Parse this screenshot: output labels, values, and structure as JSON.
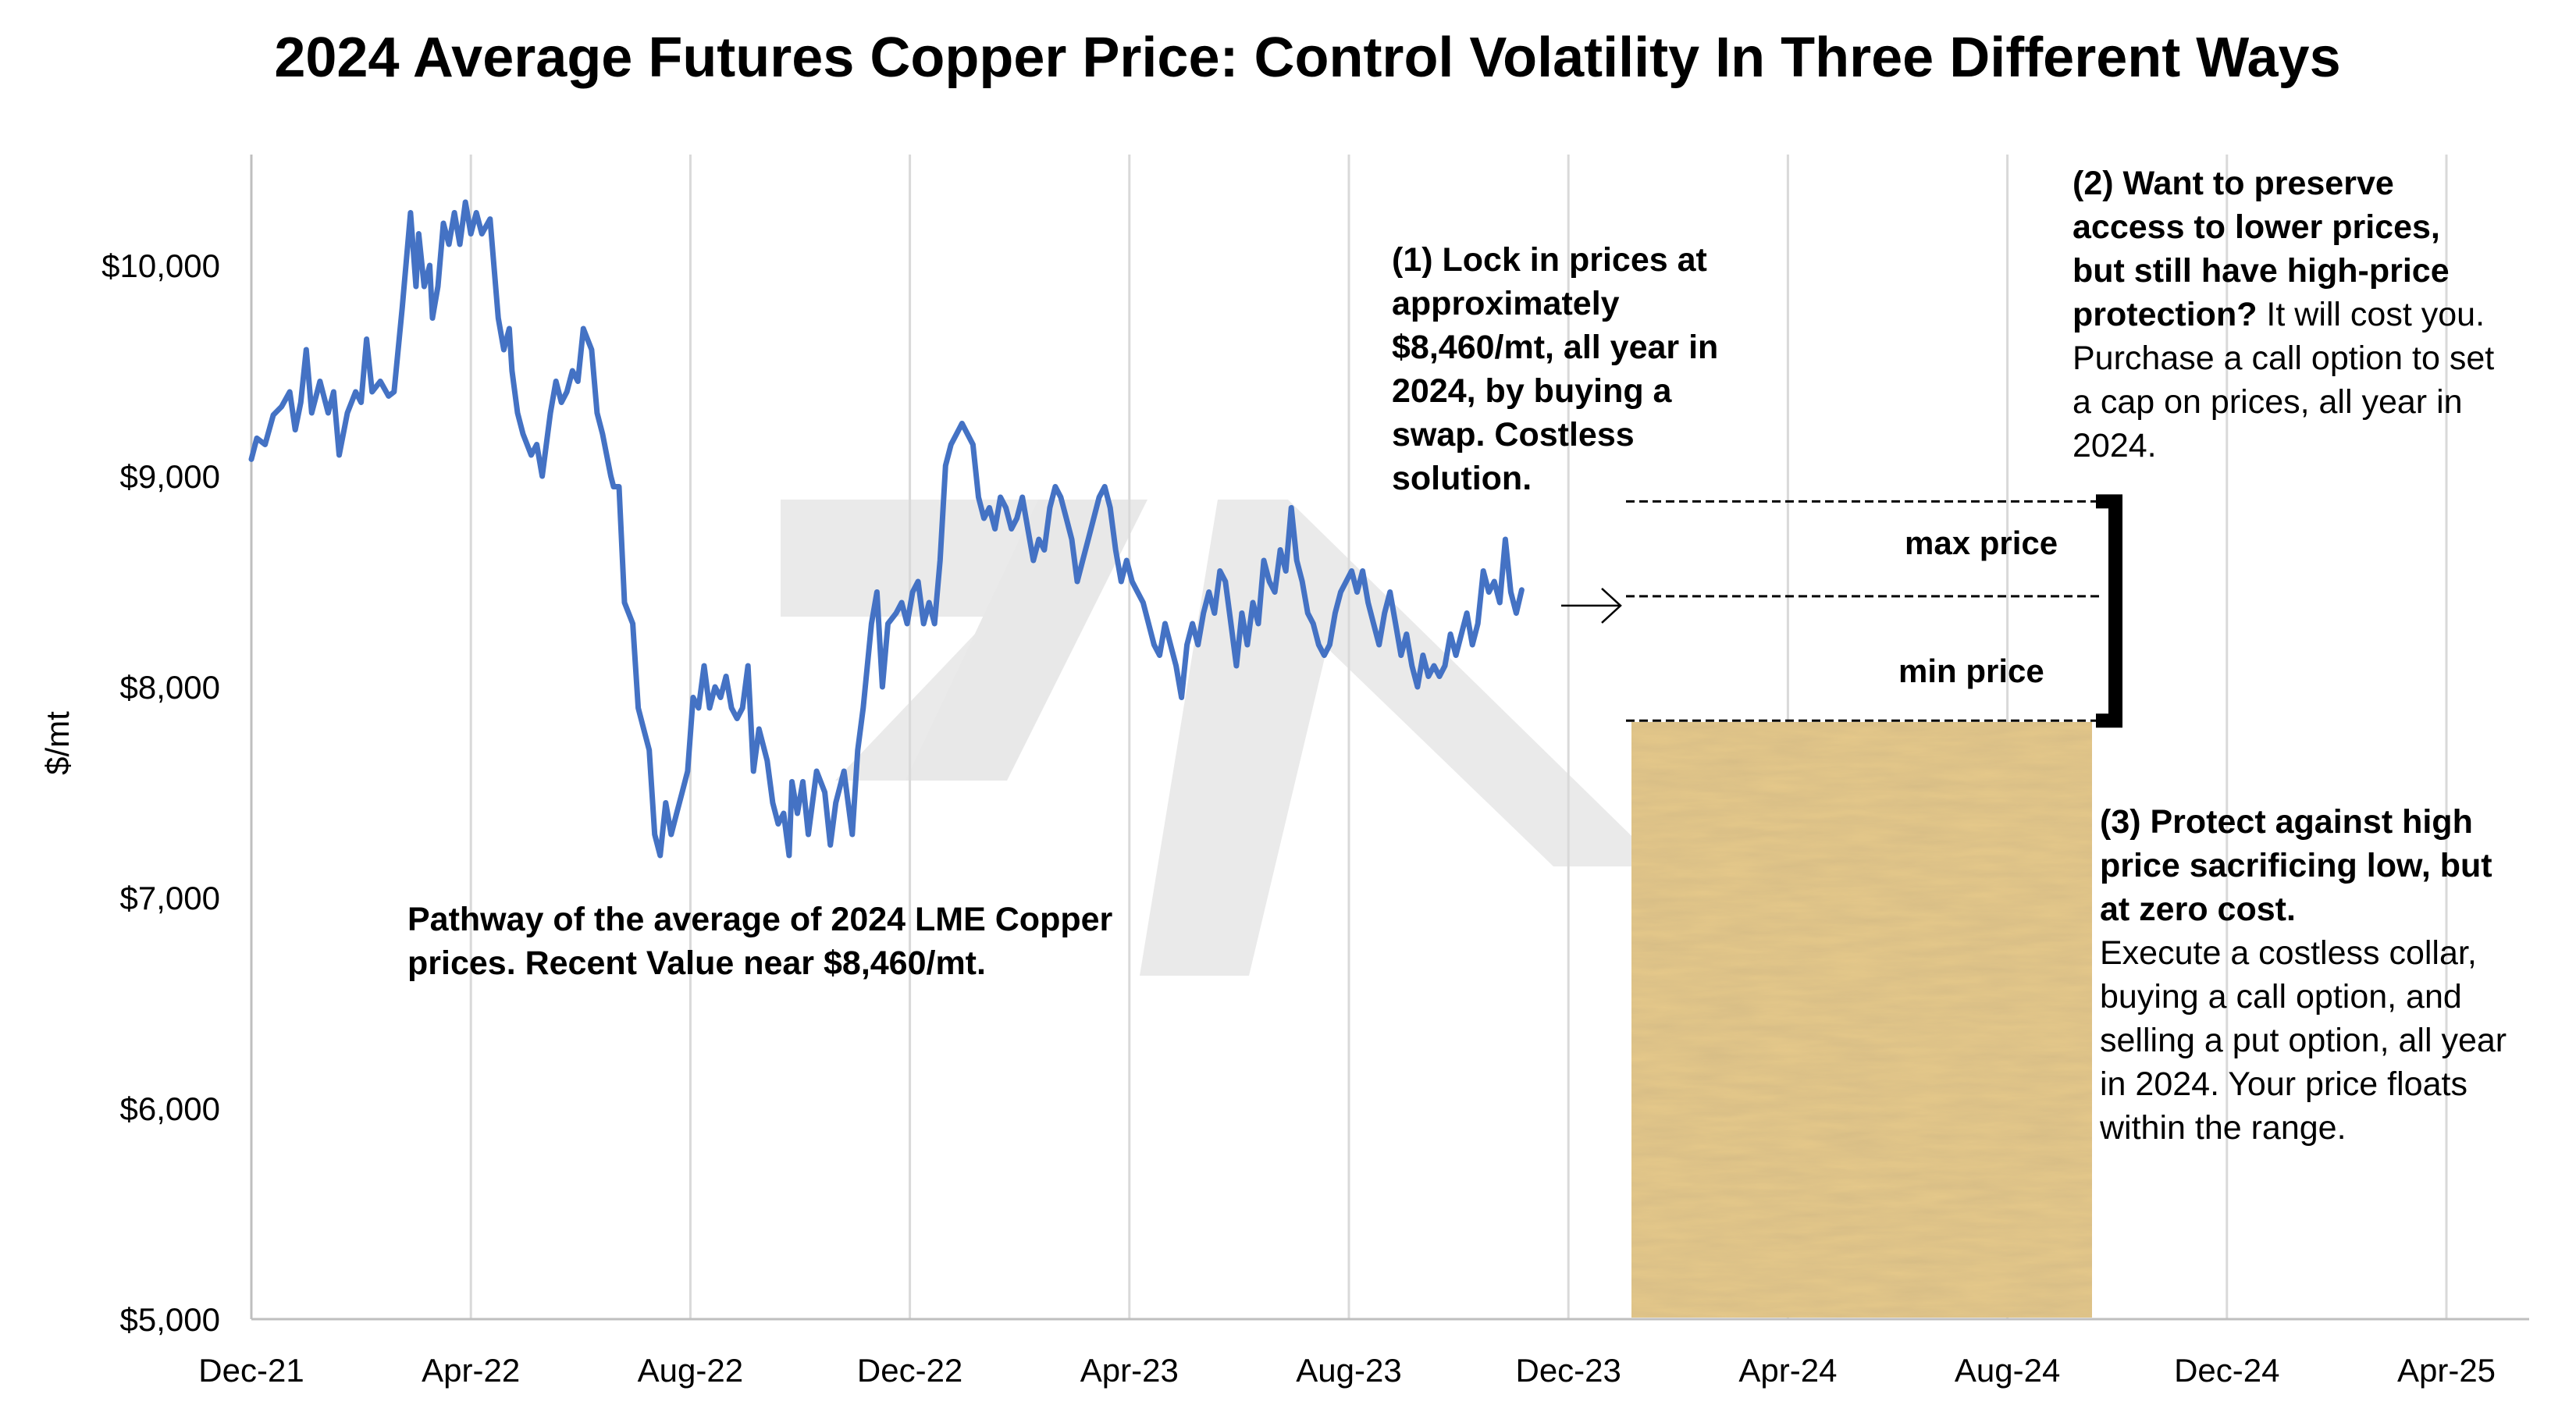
{
  "chart_data": {
    "type": "line",
    "title": "2024 Average Futures Copper Price: Control Volatility In Three Different Ways",
    "ylabel": "$/mt",
    "xlabel": "",
    "ylim": [
      5000,
      10500
    ],
    "y_ticks": [
      "$5,000",
      "$6,000",
      "$7,000",
      "$8,000",
      "$9,000",
      "$10,000"
    ],
    "y_tick_values": [
      5000,
      6000,
      7000,
      8000,
      9000,
      10000
    ],
    "x_ticks": [
      "Dec-21",
      "Apr-22",
      "Aug-22",
      "Dec-22",
      "Apr-23",
      "Aug-23",
      "Dec-23",
      "Apr-24",
      "Aug-24",
      "Dec-24",
      "Apr-25"
    ],
    "x_tick_months": [
      0,
      4,
      8,
      12,
      16,
      20,
      24,
      28,
      32,
      36,
      40
    ],
    "xlim_months": [
      0,
      41.5
    ],
    "grid": "vertical",
    "series": [
      {
        "name": "",
        "color": "#4472C4",
        "points_month_value": [
          [
            0.0,
            9080
          ],
          [
            0.1,
            9180
          ],
          [
            0.25,
            9150
          ],
          [
            0.4,
            9290
          ],
          [
            0.55,
            9330
          ],
          [
            0.7,
            9400
          ],
          [
            0.8,
            9220
          ],
          [
            0.9,
            9350
          ],
          [
            1.0,
            9600
          ],
          [
            1.1,
            9300
          ],
          [
            1.25,
            9450
          ],
          [
            1.4,
            9300
          ],
          [
            1.5,
            9400
          ],
          [
            1.6,
            9100
          ],
          [
            1.75,
            9300
          ],
          [
            1.9,
            9400
          ],
          [
            2.0,
            9350
          ],
          [
            2.1,
            9650
          ],
          [
            2.2,
            9400
          ],
          [
            2.35,
            9450
          ],
          [
            2.5,
            9380
          ],
          [
            2.6,
            9400
          ],
          [
            2.75,
            9800
          ],
          [
            2.9,
            10250
          ],
          [
            3.0,
            9900
          ],
          [
            3.05,
            10150
          ],
          [
            3.15,
            9900
          ],
          [
            3.25,
            10000
          ],
          [
            3.3,
            9750
          ],
          [
            3.4,
            9900
          ],
          [
            3.5,
            10200
          ],
          [
            3.6,
            10100
          ],
          [
            3.7,
            10250
          ],
          [
            3.8,
            10100
          ],
          [
            3.9,
            10300
          ],
          [
            4.0,
            10150
          ],
          [
            4.1,
            10250
          ],
          [
            4.2,
            10150
          ],
          [
            4.35,
            10220
          ],
          [
            4.5,
            9750
          ],
          [
            4.6,
            9600
          ],
          [
            4.7,
            9700
          ],
          [
            4.75,
            9500
          ],
          [
            4.85,
            9300
          ],
          [
            4.95,
            9200
          ],
          [
            5.1,
            9100
          ],
          [
            5.2,
            9150
          ],
          [
            5.3,
            9000
          ],
          [
            5.45,
            9300
          ],
          [
            5.55,
            9450
          ],
          [
            5.65,
            9350
          ],
          [
            5.75,
            9400
          ],
          [
            5.85,
            9500
          ],
          [
            5.95,
            9450
          ],
          [
            6.05,
            9700
          ],
          [
            6.2,
            9600
          ],
          [
            6.3,
            9300
          ],
          [
            6.4,
            9200
          ],
          [
            6.55,
            9000
          ],
          [
            6.6,
            8950
          ],
          [
            6.7,
            8950
          ],
          [
            6.8,
            8400
          ],
          [
            6.95,
            8300
          ],
          [
            7.05,
            7900
          ],
          [
            7.15,
            7800
          ],
          [
            7.25,
            7700
          ],
          [
            7.35,
            7300
          ],
          [
            7.45,
            7200
          ],
          [
            7.55,
            7450
          ],
          [
            7.65,
            7300
          ],
          [
            7.75,
            7400
          ],
          [
            7.85,
            7500
          ],
          [
            7.95,
            7600
          ],
          [
            8.05,
            7950
          ],
          [
            8.15,
            7900
          ],
          [
            8.25,
            8100
          ],
          [
            8.35,
            7900
          ],
          [
            8.45,
            8000
          ],
          [
            8.55,
            7950
          ],
          [
            8.65,
            8050
          ],
          [
            8.75,
            7900
          ],
          [
            8.85,
            7850
          ],
          [
            8.95,
            7900
          ],
          [
            9.05,
            8100
          ],
          [
            9.15,
            7600
          ],
          [
            9.25,
            7800
          ],
          [
            9.4,
            7650
          ],
          [
            9.5,
            7450
          ],
          [
            9.6,
            7350
          ],
          [
            9.7,
            7400
          ],
          [
            9.8,
            7200
          ],
          [
            9.85,
            7550
          ],
          [
            9.95,
            7400
          ],
          [
            10.05,
            7550
          ],
          [
            10.15,
            7300
          ],
          [
            10.3,
            7600
          ],
          [
            10.45,
            7500
          ],
          [
            10.55,
            7250
          ],
          [
            10.65,
            7450
          ],
          [
            10.8,
            7600
          ],
          [
            10.95,
            7300
          ],
          [
            11.05,
            7700
          ],
          [
            11.15,
            7900
          ],
          [
            11.3,
            8300
          ],
          [
            11.4,
            8450
          ],
          [
            11.5,
            8000
          ],
          [
            11.6,
            8300
          ],
          [
            11.75,
            8350
          ],
          [
            11.85,
            8400
          ],
          [
            11.95,
            8300
          ],
          [
            12.05,
            8450
          ],
          [
            12.15,
            8500
          ],
          [
            12.25,
            8300
          ],
          [
            12.35,
            8400
          ],
          [
            12.45,
            8300
          ],
          [
            12.55,
            8600
          ],
          [
            12.65,
            9050
          ],
          [
            12.75,
            9150
          ],
          [
            12.85,
            9200
          ],
          [
            12.95,
            9250
          ],
          [
            13.05,
            9200
          ],
          [
            13.15,
            9150
          ],
          [
            13.25,
            8900
          ],
          [
            13.35,
            8800
          ],
          [
            13.45,
            8850
          ],
          [
            13.55,
            8750
          ],
          [
            13.65,
            8900
          ],
          [
            13.75,
            8850
          ],
          [
            13.85,
            8750
          ],
          [
            13.95,
            8800
          ],
          [
            14.05,
            8900
          ],
          [
            14.15,
            8750
          ],
          [
            14.25,
            8600
          ],
          [
            14.35,
            8700
          ],
          [
            14.45,
            8650
          ],
          [
            14.55,
            8850
          ],
          [
            14.65,
            8950
          ],
          [
            14.75,
            8900
          ],
          [
            14.85,
            8800
          ],
          [
            14.95,
            8700
          ],
          [
            15.05,
            8500
          ],
          [
            15.15,
            8600
          ],
          [
            15.25,
            8700
          ],
          [
            15.35,
            8800
          ],
          [
            15.45,
            8900
          ],
          [
            15.55,
            8950
          ],
          [
            15.65,
            8850
          ],
          [
            15.75,
            8650
          ],
          [
            15.85,
            8500
          ],
          [
            15.95,
            8600
          ],
          [
            16.05,
            8500
          ],
          [
            16.15,
            8450
          ],
          [
            16.25,
            8400
          ],
          [
            16.35,
            8300
          ],
          [
            16.45,
            8200
          ],
          [
            16.55,
            8150
          ],
          [
            16.65,
            8300
          ],
          [
            16.75,
            8200
          ],
          [
            16.85,
            8100
          ],
          [
            16.95,
            7950
          ],
          [
            17.05,
            8200
          ],
          [
            17.15,
            8300
          ],
          [
            17.25,
            8200
          ],
          [
            17.35,
            8350
          ],
          [
            17.45,
            8450
          ],
          [
            17.55,
            8350
          ],
          [
            17.65,
            8550
          ],
          [
            17.75,
            8500
          ],
          [
            17.85,
            8300
          ],
          [
            17.95,
            8100
          ],
          [
            18.05,
            8350
          ],
          [
            18.15,
            8200
          ],
          [
            18.25,
            8400
          ],
          [
            18.35,
            8300
          ],
          [
            18.45,
            8600
          ],
          [
            18.55,
            8500
          ],
          [
            18.65,
            8450
          ],
          [
            18.75,
            8650
          ],
          [
            18.85,
            8550
          ],
          [
            18.95,
            8850
          ],
          [
            19.05,
            8600
          ],
          [
            19.15,
            8500
          ],
          [
            19.25,
            8350
          ],
          [
            19.35,
            8300
          ],
          [
            19.45,
            8200
          ],
          [
            19.55,
            8150
          ],
          [
            19.65,
            8200
          ],
          [
            19.75,
            8350
          ],
          [
            19.85,
            8450
          ],
          [
            19.95,
            8500
          ],
          [
            20.05,
            8550
          ],
          [
            20.15,
            8450
          ],
          [
            20.25,
            8550
          ],
          [
            20.35,
            8400
          ],
          [
            20.45,
            8300
          ],
          [
            20.55,
            8200
          ],
          [
            20.65,
            8350
          ],
          [
            20.75,
            8450
          ],
          [
            20.85,
            8300
          ],
          [
            20.95,
            8150
          ],
          [
            21.05,
            8250
          ],
          [
            21.15,
            8100
          ],
          [
            21.25,
            8000
          ],
          [
            21.35,
            8150
          ],
          [
            21.45,
            8050
          ],
          [
            21.55,
            8100
          ],
          [
            21.65,
            8050
          ],
          [
            21.75,
            8100
          ],
          [
            21.85,
            8250
          ],
          [
            21.95,
            8150
          ],
          [
            22.05,
            8250
          ],
          [
            22.15,
            8350
          ],
          [
            22.25,
            8200
          ],
          [
            22.35,
            8300
          ],
          [
            22.45,
            8550
          ],
          [
            22.55,
            8450
          ],
          [
            22.65,
            8500
          ],
          [
            22.75,
            8400
          ],
          [
            22.85,
            8700
          ],
          [
            22.95,
            8450
          ],
          [
            23.05,
            8350
          ],
          [
            23.15,
            8460
          ]
        ]
      }
    ],
    "annotations": {
      "swap": {
        "bold": "(1) Lock in prices at approximately $8,460/mt, all year in 2024, by buying a swap. Costless solution.",
        "normal": ""
      },
      "call": {
        "bold": "(2) Want to preserve access to lower prices, but still have high-price protection?",
        "normal": " It will cost you. Purchase a call option to set a cap on prices, all year in 2024."
      },
      "collar": {
        "bold": "(3) Protect against high price sacrificing low, but at zero cost.",
        "normal": "Execute a costless collar, buying a call option, and selling a put option, all year in 2024. Your price floats within the range."
      },
      "pathway": "Pathway of the average of 2024 LME Copper prices.  Recent Value near $8,460/mt.",
      "max_price_label": "max price",
      "min_price_label": "min price"
    },
    "levels": {
      "max_price": 8880,
      "swap_price": 8430,
      "min_price": 7840
    },
    "colors": {
      "line": "#4472C4",
      "grid": "#d9d9d9",
      "watermark": "#e8e8e8",
      "parchment": "#e6c98a"
    }
  }
}
